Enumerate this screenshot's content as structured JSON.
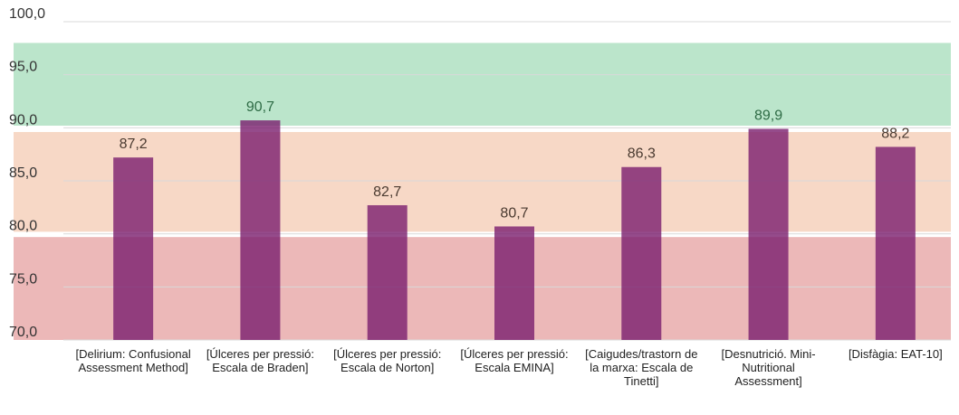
{
  "chart_data": {
    "type": "bar",
    "categories": [
      "[Delirium: Confusional Assessment Method]",
      "[Úlceres per pressió: Escala de Braden]",
      "[Úlceres per pressió: Escala de Norton]",
      "[Úlceres per pressió: Escala EMINA]",
      "[Caigudes/trastorn de la marxa: Escala de Tinetti]",
      "[Desnutrició. Mini-Nutritional Assessment]",
      "[Disfàgia: EAT-10]"
    ],
    "values": [
      87.2,
      90.7,
      82.7,
      80.7,
      86.3,
      89.9,
      88.2
    ],
    "value_labels": [
      "87,2",
      "90,7",
      "82,7",
      "80,7",
      "86,3",
      "89,9",
      "88,2"
    ],
    "color": "#7a1e6e",
    "ylim": [
      70,
      100
    ],
    "yticks": [
      {
        "value": 70,
        "label": "70,0"
      },
      {
        "value": 75,
        "label": "75,0"
      },
      {
        "value": 80,
        "label": "80,0"
      },
      {
        "value": 85,
        "label": "85,0"
      },
      {
        "value": 90,
        "label": "90,0"
      },
      {
        "value": 95,
        "label": "95,0"
      },
      {
        "value": 100,
        "label": "100,0"
      }
    ],
    "grid": true,
    "bands": [
      {
        "from": 70,
        "to": 79.7,
        "color": "#ecb8b8",
        "text_color": "#4a3a30"
      },
      {
        "from": 80.2,
        "to": 89.6,
        "color": "#f7d8c6",
        "text_color": "#4a3a30"
      },
      {
        "from": 90.2,
        "to": 98,
        "color": "#bbe5cb",
        "text_color": "#2e6b45"
      }
    ]
  }
}
